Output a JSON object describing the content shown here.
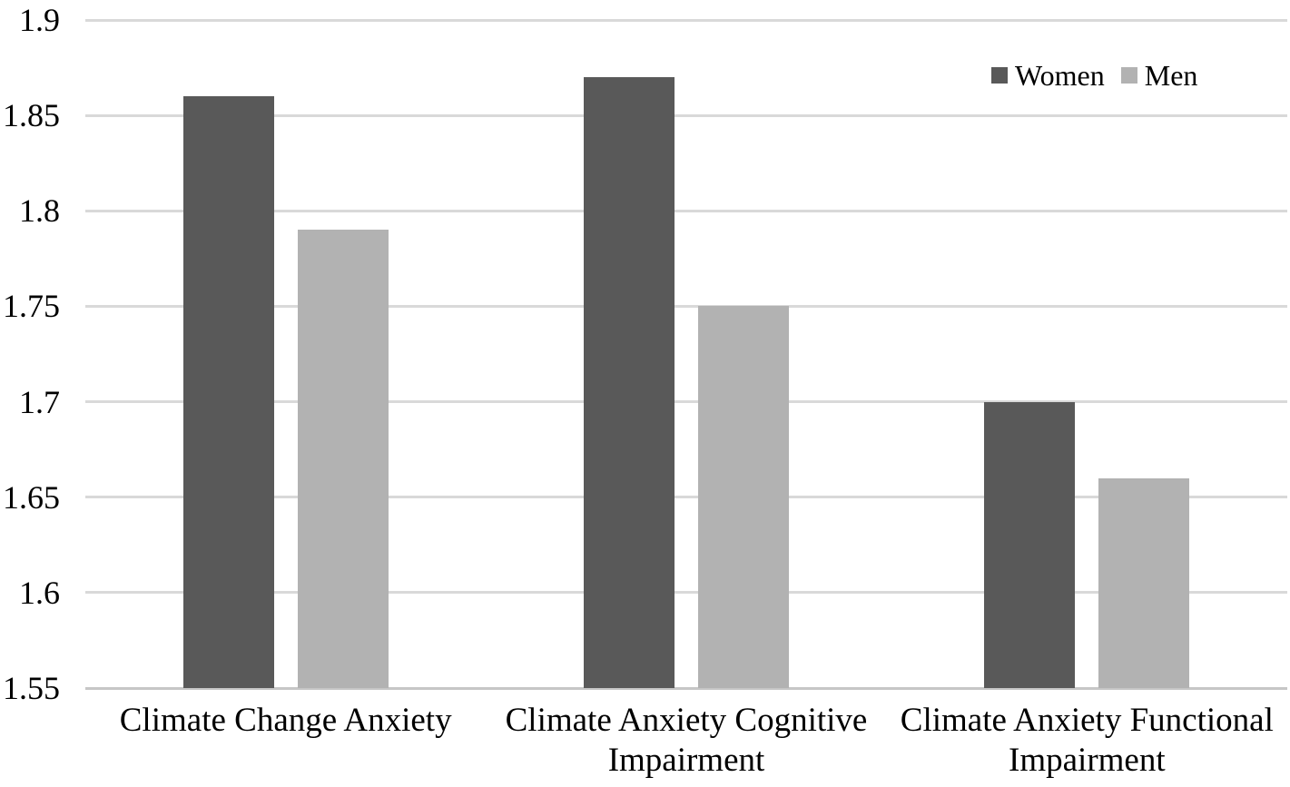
{
  "chart_data": {
    "type": "bar",
    "title": "",
    "categories": [
      "Climate Change Anxiety",
      "Climate Anxiety Cognitive Impairment",
      "Climate Anxiety Functional Impairment"
    ],
    "series": [
      {
        "name": "Women",
        "color": "#595959",
        "values": [
          1.86,
          1.87,
          1.7
        ]
      },
      {
        "name": "Men",
        "color": "#b2b2b2",
        "values": [
          1.79,
          1.75,
          1.66
        ]
      }
    ],
    "ylim": [
      1.55,
      1.9
    ],
    "yticks": [
      {
        "value": 1.9,
        "label": "1.9"
      },
      {
        "value": 1.85,
        "label": "1.85"
      },
      {
        "value": 1.8,
        "label": "1.8"
      },
      {
        "value": 1.75,
        "label": "1.75"
      },
      {
        "value": 1.7,
        "label": "1.7"
      },
      {
        "value": 1.65,
        "label": "1.65"
      },
      {
        "value": 1.6,
        "label": "1.6"
      },
      {
        "value": 1.55,
        "label": "1.55"
      }
    ],
    "grid": "horizontal",
    "gridline_color": "#d9d9d9",
    "axis_line_color": "#c6c6c6",
    "legend_position": "top-right",
    "background": "#ffffff",
    "text_color": "#000000"
  }
}
